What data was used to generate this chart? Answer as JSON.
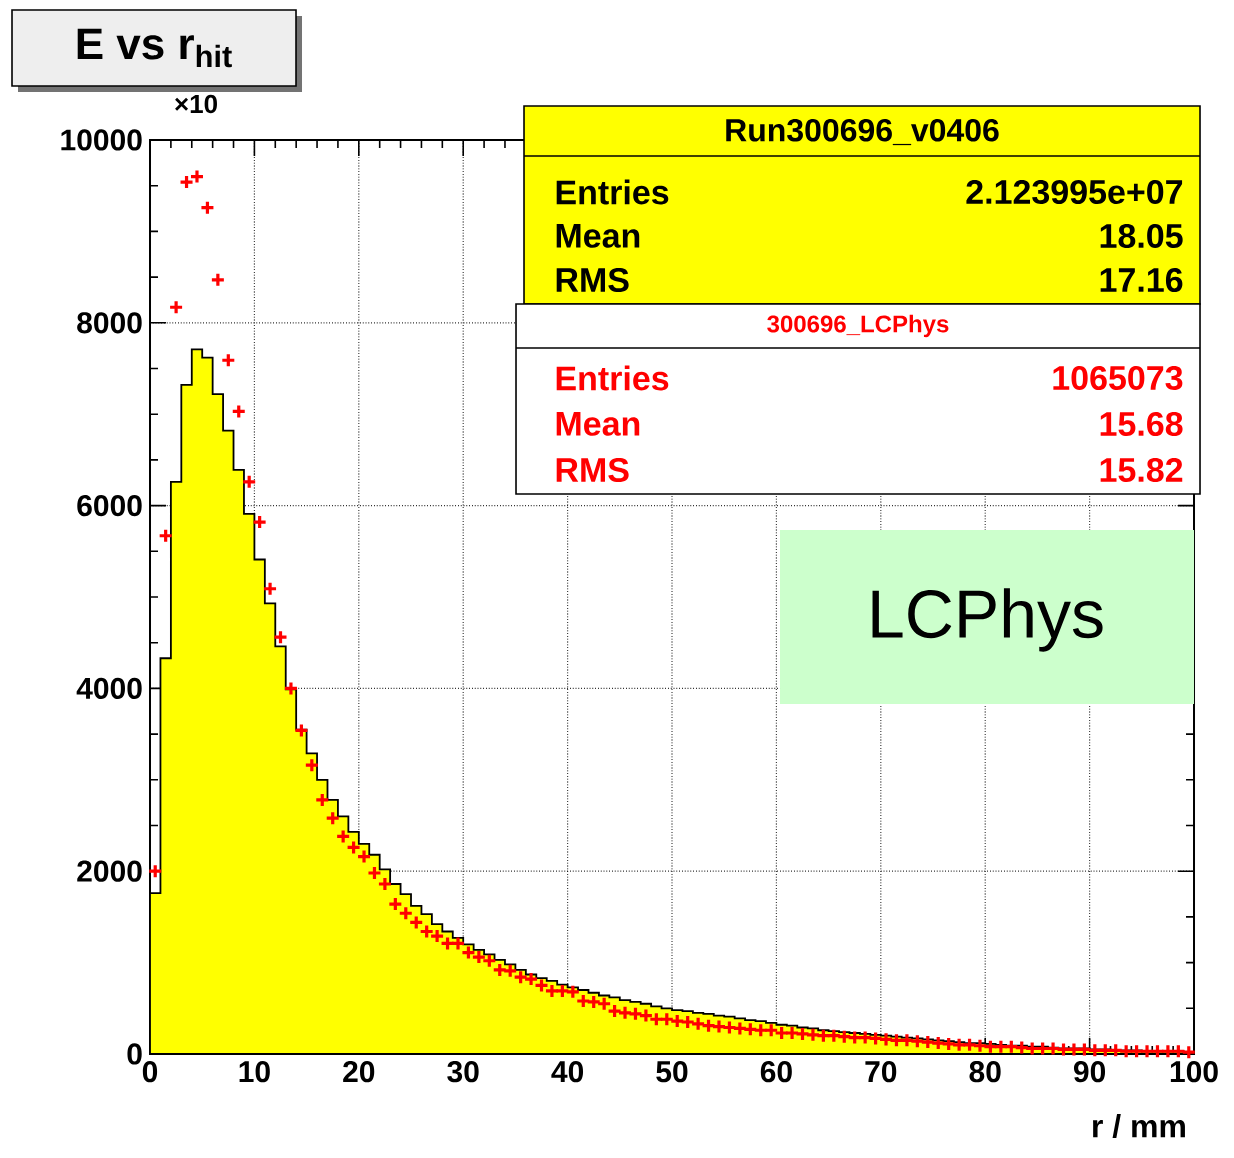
{
  "chart_data": {
    "type": "histogram",
    "title": "E vs r$_{hit}$",
    "xlabel": "r / mm",
    "xlim": [
      0,
      100
    ],
    "ylim": [
      0,
      10000
    ],
    "xticks": [
      0,
      10,
      20,
      30,
      40,
      50,
      60,
      70,
      80,
      90,
      100
    ],
    "yticks": [
      0,
      2000,
      4000,
      6000,
      8000,
      10000
    ],
    "grid": true,
    "bins": [
      0,
      1,
      2,
      3,
      4,
      5,
      6,
      7,
      8,
      9,
      10,
      11,
      12,
      13,
      14,
      15,
      16,
      17,
      18,
      19,
      20,
      21,
      22,
      23,
      24,
      25,
      26,
      27,
      28,
      29,
      30,
      31,
      32,
      33,
      34,
      35,
      36,
      37,
      38,
      39,
      40,
      41,
      42,
      43,
      44,
      45,
      46,
      47,
      48,
      49,
      50,
      51,
      52,
      53,
      54,
      55,
      56,
      57,
      58,
      59,
      60,
      61,
      62,
      63,
      64,
      65,
      66,
      67,
      68,
      69,
      70,
      71,
      72,
      73,
      74,
      75,
      76,
      77,
      78,
      79,
      80,
      81,
      82,
      83,
      84,
      85,
      86,
      87,
      88,
      89,
      90,
      91,
      92,
      93,
      94,
      95,
      96,
      97,
      98,
      99,
      100
    ],
    "series": [
      {
        "color": "#ffff00",
        "values": [
          1760,
          4330,
          6260,
          7320,
          7710,
          7620,
          7220,
          6820,
          6390,
          5910,
          5410,
          4930,
          4460,
          3990,
          3550,
          3290,
          3000,
          2780,
          2600,
          2430,
          2300,
          2180,
          2020,
          1860,
          1750,
          1620,
          1530,
          1420,
          1340,
          1270,
          1200,
          1140,
          1090,
          1030,
          980,
          920,
          870,
          830,
          800,
          760,
          730,
          700,
          670,
          640,
          620,
          590,
          570,
          550,
          520,
          500,
          480,
          470,
          450,
          440,
          420,
          410,
          390,
          370,
          360,
          340,
          320,
          310,
          290,
          280,
          260,
          250,
          240,
          230,
          220,
          210,
          200,
          190,
          180,
          170,
          160,
          150,
          140,
          130,
          120,
          120,
          110,
          100,
          90,
          90,
          80,
          80,
          70,
          60,
          60,
          60,
          50,
          50,
          40,
          40,
          40,
          30,
          30,
          30,
          30,
          20
        ]
      },
      {
        "type": "scatter",
        "color": "#ff0000",
        "marker": "cross",
        "x": [
          0.5,
          1.5,
          2.5,
          3.5,
          4.5,
          5.5,
          6.5,
          7.5,
          8.5,
          9.5,
          10.5,
          11.5,
          12.5,
          13.5,
          14.5,
          15.5,
          16.5,
          17.5,
          18.5,
          19.5,
          20.5,
          21.5,
          22.5,
          23.5,
          24.5,
          25.5,
          26.5,
          27.5,
          28.5,
          29.5,
          30.5,
          31.5,
          32.5,
          33.5,
          34.5,
          35.5,
          36.5,
          37.5,
          38.5,
          39.5,
          40.5,
          41.5,
          42.5,
          43.5,
          44.5,
          45.5,
          46.5,
          47.5,
          48.5,
          49.5,
          50.5,
          51.5,
          52.5,
          53.5,
          54.5,
          55.5,
          56.5,
          57.5,
          58.5,
          59.5,
          60.5,
          61.5,
          62.5,
          63.5,
          64.5,
          65.5,
          66.5,
          67.5,
          68.5,
          69.5,
          70.5,
          71.5,
          72.5,
          73.5,
          74.5,
          75.5,
          76.5,
          77.5,
          78.5,
          79.5,
          80.5,
          81.5,
          82.5,
          83.5,
          84.5,
          85.5,
          86.5,
          87.5,
          88.5,
          89.5,
          90.5,
          91.5,
          92.5,
          93.5,
          94.5,
          95.5,
          96.5,
          97.5,
          98.5,
          99.5
        ],
        "values": [
          2000,
          5670,
          8170,
          9540,
          9600,
          9260,
          8470,
          7590,
          7030,
          6260,
          5820,
          5090,
          4560,
          4000,
          3540,
          3160,
          2780,
          2580,
          2380,
          2260,
          2160,
          1980,
          1860,
          1640,
          1540,
          1440,
          1340,
          1290,
          1210,
          1210,
          1110,
          1060,
          1020,
          920,
          910,
          840,
          820,
          750,
          690,
          690,
          680,
          580,
          570,
          550,
          470,
          450,
          440,
          420,
          380,
          380,
          360,
          350,
          330,
          310,
          300,
          290,
          280,
          270,
          260,
          260,
          230,
          230,
          220,
          210,
          200,
          200,
          190,
          180,
          180,
          170,
          160,
          150,
          150,
          140,
          130,
          120,
          110,
          100,
          100,
          90,
          80,
          80,
          80,
          70,
          60,
          60,
          60,
          50,
          50,
          50,
          40,
          40,
          40,
          30,
          30,
          30,
          30,
          30,
          30,
          20
        ]
      }
    ],
    "annotations": [
      "Run300696_v0406",
      "Entries",
      "2.123995e+07",
      "Mean",
      "18.05",
      "RMS",
      "17.16",
      "300696_LCPhys",
      "Entries",
      "1065073",
      "Mean",
      "15.68",
      "RMS",
      "15.82",
      "LCPhys",
      "×10"
    ]
  }
}
